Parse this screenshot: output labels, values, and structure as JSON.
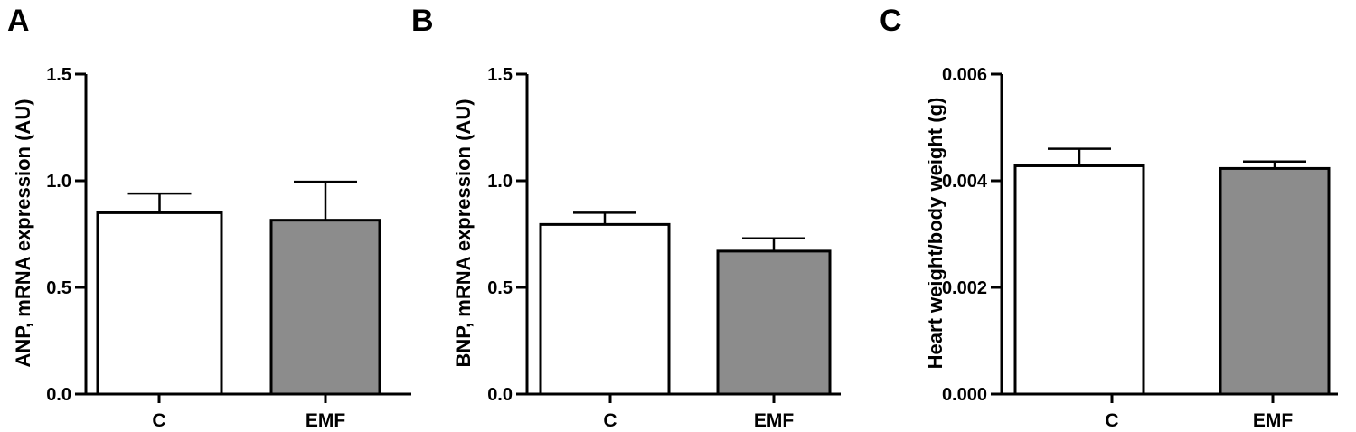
{
  "colors": {
    "control": "#ffffff",
    "emf": "#8c8c8c",
    "stroke": "#000000"
  },
  "chart_data": [
    {
      "panel": "A",
      "type": "bar",
      "categories": [
        "C",
        "EMF"
      ],
      "values": [
        0.85,
        0.815
      ],
      "errors": [
        0.09,
        0.18
      ],
      "ylabel": "ANP, mRNA expression (AU)",
      "ylim": [
        0,
        1.5
      ],
      "yticks": [
        0.0,
        0.5,
        1.0,
        1.5
      ],
      "ytick_labels": [
        "0.0",
        "0.5",
        "1.0",
        "1.5"
      ],
      "grid": false
    },
    {
      "panel": "B",
      "type": "bar",
      "categories": [
        "C",
        "EMF"
      ],
      "values": [
        0.795,
        0.67
      ],
      "errors": [
        0.055,
        0.06
      ],
      "ylabel": "BNP, mRNA expression (AU)",
      "ylim": [
        0,
        1.5
      ],
      "yticks": [
        0.0,
        0.5,
        1.0,
        1.5
      ],
      "ytick_labels": [
        "0.0",
        "0.5",
        "1.0",
        "1.5"
      ],
      "grid": false
    },
    {
      "panel": "C",
      "type": "bar",
      "categories": [
        "C",
        "EMF"
      ],
      "values": [
        0.00428,
        0.00423
      ],
      "errors": [
        0.00032,
        0.00013
      ],
      "ylabel": "Heart weight/body weight (g)",
      "ylim": [
        0,
        0.006
      ],
      "yticks": [
        0.0,
        0.002,
        0.004,
        0.006
      ],
      "ytick_labels": [
        "0.000",
        "0.002",
        "0.004",
        "0.006"
      ],
      "grid": false
    }
  ]
}
